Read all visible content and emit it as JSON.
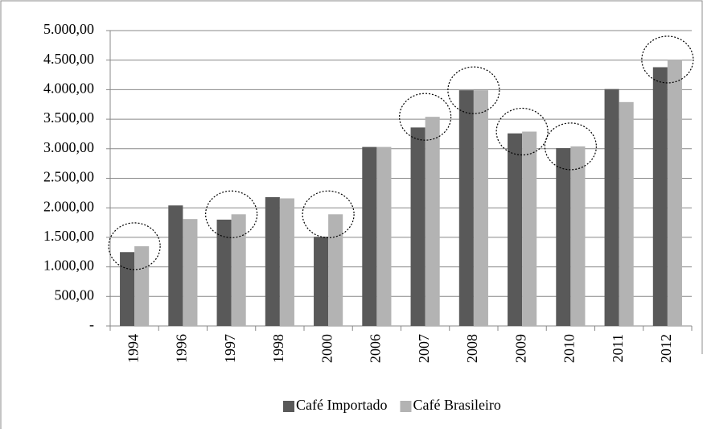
{
  "chart_data": {
    "type": "bar",
    "categories": [
      "1994",
      "1996",
      "1997",
      "1998",
      "2000",
      "2006",
      "2007",
      "2008",
      "2009",
      "2010",
      "2011",
      "2012"
    ],
    "series": [
      {
        "name": "Café Importado",
        "color": "#595959",
        "values": [
          1250,
          2040,
          1800,
          2180,
          1510,
          3030,
          3360,
          3990,
          3260,
          3010,
          4010,
          4380
        ]
      },
      {
        "name": "Café Brasileiro",
        "color": "#b3b3b3",
        "values": [
          1350,
          1810,
          1890,
          2160,
          1890,
          3030,
          3540,
          3990,
          3290,
          3040,
          3790,
          4510
        ]
      }
    ],
    "ylim": [
      0,
      5000
    ],
    "yticks": [
      {
        "value": 0,
        "label": "-"
      },
      {
        "value": 500,
        "label": "500,00"
      },
      {
        "value": 1000,
        "label": "1.000,00"
      },
      {
        "value": 1500,
        "label": "1.500,00"
      },
      {
        "value": 2000,
        "label": "2.000,00"
      },
      {
        "value": 2500,
        "label": "2.500,00"
      },
      {
        "value": 3000,
        "label": "3.000,00"
      },
      {
        "value": 3500,
        "label": "3.500,00"
      },
      {
        "value": 4000,
        "label": "4.000,00"
      },
      {
        "value": 4500,
        "label": "4.500,00"
      },
      {
        "value": 5000,
        "label": "5.000,00"
      }
    ],
    "grid": true,
    "legend": "bottom"
  }
}
